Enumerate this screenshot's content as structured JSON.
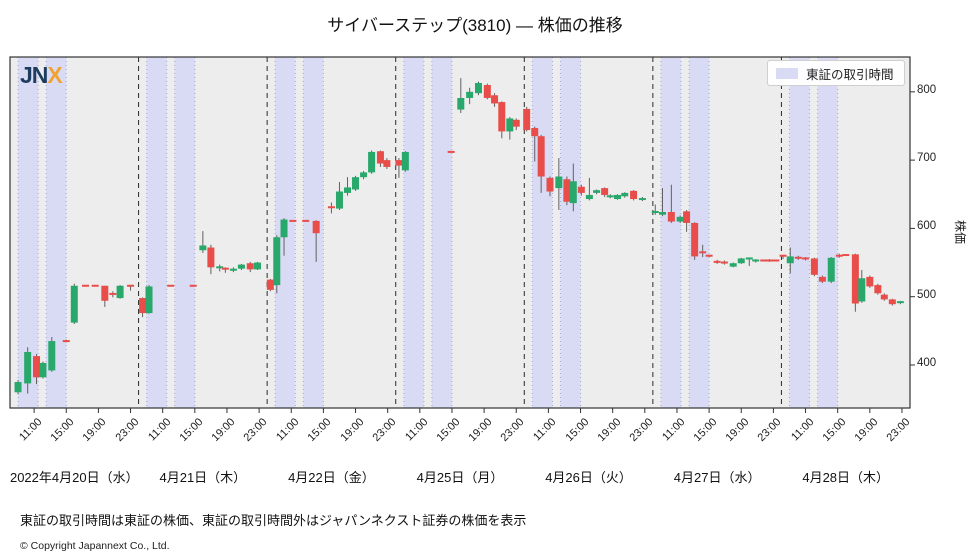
{
  "page": {
    "logo_jn": "JN",
    "logo_x": "X",
    "footer_note": "東証の取引時間は東証の株価、東証の取引時間外はジャパンネクスト証券の株価を表示",
    "copyright": "© Copyright  Japannext Co., Ltd."
  },
  "chart_data": {
    "type": "candlestick",
    "title": "サイバーステップ(3810) ― 株価の推移",
    "ylabel": "株価",
    "legend_label": "東証の取引時間",
    "yticks": [
      400,
      500,
      600,
      700,
      800
    ],
    "ylim": [
      337,
      851
    ],
    "x_hours_per_day": [
      8,
      24
    ],
    "time_tick_hours": [
      11,
      15,
      19,
      23
    ],
    "time_tick_labels": [
      "11:00",
      "15:00",
      "19:00",
      "23:00"
    ],
    "tse_sessions_hours": [
      [
        9,
        11.5
      ],
      [
        12.5,
        15
      ]
    ],
    "grid": false,
    "legend_position": "upper right",
    "colors": {
      "up": "#28a86b",
      "down": "#e84d4a",
      "wick": "#616161",
      "band": "#d9dbf4",
      "band_edge": "#a0a6d8",
      "plot_bg": "#ededed",
      "day_separator": "#2b2b2b",
      "border": "#333333"
    },
    "candle_format": [
      "hour_of_day",
      "open",
      "high",
      "low",
      "close",
      "optional_color_r_or_g"
    ],
    "days": [
      {
        "date": "2022年4月20日（水）",
        "candles": [
          [
            9.0,
            360,
            378,
            357,
            375
          ],
          [
            10.2,
            373,
            426,
            358,
            419
          ],
          [
            11.3,
            413,
            416,
            372,
            382
          ],
          [
            12.1,
            382,
            405,
            380,
            403
          ],
          [
            13.2,
            392,
            441,
            390,
            435
          ],
          [
            15.0,
            435,
            437,
            433,
            435,
            "r"
          ],
          [
            16.0,
            462,
            519,
            460,
            516
          ],
          [
            17.4,
            516,
            516,
            516,
            516,
            "r"
          ],
          [
            18.6,
            516,
            516,
            516,
            516,
            "r"
          ],
          [
            19.8,
            516,
            516,
            485,
            494,
            "r"
          ],
          [
            20.8,
            504,
            508,
            499,
            504,
            "r"
          ],
          [
            21.7,
            498,
            517,
            497,
            516
          ],
          [
            23.0,
            516,
            517,
            509,
            516,
            "r"
          ]
        ]
      },
      {
        "date": "4月21日（木）",
        "candles": [
          [
            8.5,
            498,
            499,
            470,
            476,
            "r"
          ],
          [
            9.3,
            476,
            517,
            475,
            515
          ],
          [
            12.0,
            516,
            516,
            516,
            516,
            "r"
          ],
          [
            14.8,
            516,
            516,
            516,
            516,
            "r"
          ],
          [
            16.0,
            568,
            596,
            564,
            575
          ],
          [
            17.0,
            572,
            576,
            533,
            543,
            "r"
          ],
          [
            18.1,
            543,
            547,
            537,
            541,
            "g"
          ],
          [
            18.8,
            541,
            543,
            535,
            539,
            "r"
          ],
          [
            19.8,
            538,
            543,
            536,
            541
          ],
          [
            20.8,
            541,
            548,
            539,
            547
          ],
          [
            21.9,
            549,
            551,
            536,
            540,
            "r"
          ],
          [
            22.8,
            540,
            551,
            539,
            550
          ]
        ]
      },
      {
        "date": "4月22日（金）",
        "candles": [
          [
            8.4,
            525,
            526,
            508,
            510,
            "r"
          ],
          [
            9.2,
            517,
            590,
            505,
            587
          ],
          [
            10.1,
            587,
            615,
            560,
            613
          ],
          [
            11.2,
            611,
            611,
            611,
            611,
            "r"
          ],
          [
            12.8,
            611,
            611,
            611,
            611,
            "r"
          ],
          [
            14.1,
            611,
            612,
            551,
            593,
            "r"
          ],
          [
            16.0,
            630,
            638,
            622,
            631,
            "r"
          ],
          [
            17.0,
            629,
            668,
            627,
            654
          ],
          [
            18.0,
            652,
            675,
            648,
            660
          ],
          [
            19.0,
            657,
            677,
            655,
            675
          ],
          [
            20.0,
            675,
            684,
            672,
            682
          ],
          [
            21.0,
            682,
            714,
            680,
            712
          ],
          [
            22.1,
            713,
            714,
            690,
            695,
            "r"
          ],
          [
            22.9,
            700,
            703,
            687,
            690,
            "r"
          ]
        ]
      },
      {
        "date": "4月25日（月）",
        "candles": [
          [
            8.4,
            700,
            703,
            674,
            692,
            "r"
          ],
          [
            9.2,
            685,
            713,
            683,
            712
          ],
          [
            14.9,
            712,
            712,
            712,
            712,
            "r"
          ],
          [
            16.1,
            774,
            820,
            769,
            791
          ],
          [
            17.2,
            791,
            806,
            782,
            800
          ],
          [
            18.3,
            798,
            815,
            795,
            813
          ],
          [
            19.4,
            810,
            812,
            789,
            791,
            "r"
          ],
          [
            20.3,
            795,
            798,
            778,
            783,
            "r"
          ],
          [
            21.2,
            785,
            786,
            732,
            742,
            "r"
          ],
          [
            22.2,
            742,
            763,
            730,
            761
          ],
          [
            23.0,
            759,
            761,
            744,
            749,
            "r"
          ]
        ]
      },
      {
        "date": "4月26日（火）",
        "candles": [
          [
            8.3,
            775,
            778,
            742,
            744,
            "r"
          ],
          [
            9.3,
            747,
            749,
            698,
            735,
            "r"
          ],
          [
            10.1,
            735,
            737,
            652,
            676,
            "r"
          ],
          [
            11.2,
            674,
            676,
            647,
            654,
            "r"
          ],
          [
            12.3,
            659,
            703,
            627,
            676
          ],
          [
            13.3,
            672,
            676,
            634,
            639,
            "r"
          ],
          [
            14.1,
            637,
            695,
            625,
            669
          ],
          [
            15.1,
            661,
            664,
            648,
            652,
            "r"
          ],
          [
            16.1,
            643,
            674,
            641,
            649
          ],
          [
            17.0,
            652,
            657,
            650,
            656
          ],
          [
            18.0,
            659,
            660,
            646,
            649,
            "r"
          ],
          [
            18.7,
            647,
            650,
            644,
            647,
            "g"
          ],
          [
            19.6,
            643,
            650,
            642,
            649
          ],
          [
            20.5,
            647,
            653,
            645,
            652
          ],
          [
            21.6,
            655,
            656,
            641,
            643,
            "r"
          ],
          [
            22.7,
            643,
            646,
            640,
            643,
            "g"
          ]
        ]
      },
      {
        "date": "4月27日（水）",
        "candles": [
          [
            8.3,
            622,
            635,
            620,
            624
          ],
          [
            9.2,
            620,
            659,
            618,
            624
          ],
          [
            10.3,
            624,
            664,
            608,
            610,
            "r"
          ],
          [
            11.4,
            610,
            619,
            608,
            617
          ],
          [
            12.2,
            625,
            627,
            595,
            608,
            "r"
          ],
          [
            13.2,
            608,
            609,
            554,
            559,
            "r"
          ],
          [
            14.2,
            565,
            576,
            558,
            563,
            "r"
          ],
          [
            15.0,
            560,
            561,
            558,
            560,
            "r"
          ],
          [
            16.0,
            551,
            554,
            548,
            551,
            "r"
          ],
          [
            16.9,
            550,
            553,
            547,
            550,
            "r"
          ],
          [
            18.0,
            544,
            550,
            543,
            549
          ],
          [
            19.0,
            549,
            557,
            548,
            556
          ],
          [
            20.0,
            556,
            557,
            545,
            556,
            "g"
          ],
          [
            20.8,
            553,
            555,
            550,
            553,
            "g"
          ],
          [
            21.8,
            553,
            554,
            552,
            553,
            "r"
          ],
          [
            22.5,
            553,
            555,
            551,
            553,
            "r"
          ],
          [
            23.3,
            553,
            553,
            552,
            553,
            "r"
          ]
        ]
      },
      {
        "date": "4月28日（木）",
        "candles": [
          [
            8.2,
            560,
            561,
            555,
            560,
            "r"
          ],
          [
            9.1,
            549,
            572,
            534,
            559
          ],
          [
            10.1,
            557,
            560,
            554,
            557,
            "r"
          ],
          [
            11.0,
            556,
            558,
            553,
            556,
            "r"
          ],
          [
            12.1,
            556,
            557,
            530,
            532,
            "r"
          ],
          [
            13.1,
            529,
            531,
            520,
            522,
            "r"
          ],
          [
            14.2,
            522,
            558,
            520,
            557
          ],
          [
            15.2,
            560,
            563,
            557,
            560,
            "r"
          ],
          [
            16.0,
            561,
            562,
            560,
            561,
            "r"
          ],
          [
            17.2,
            562,
            563,
            478,
            490,
            "r"
          ],
          [
            18.0,
            493,
            539,
            491,
            527
          ],
          [
            19.0,
            529,
            531,
            513,
            515,
            "r"
          ],
          [
            20.0,
            517,
            519,
            503,
            505,
            "r"
          ],
          [
            20.8,
            503,
            505,
            494,
            496,
            "r"
          ],
          [
            21.8,
            496,
            497,
            487,
            489,
            "r"
          ],
          [
            22.8,
            491,
            494,
            489,
            492,
            "g"
          ]
        ]
      }
    ]
  }
}
